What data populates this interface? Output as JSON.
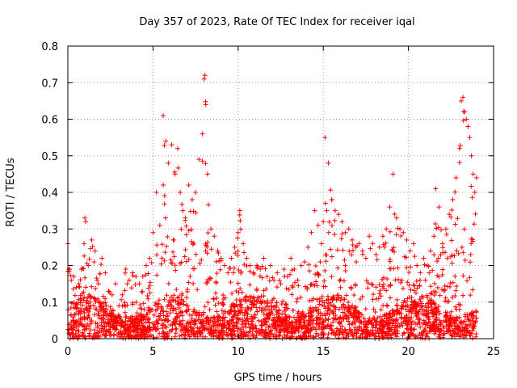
{
  "chart_data": {
    "type": "scatter",
    "title": "Day 357 of 2023, Rate Of TEC Index for receiver iqal",
    "xlabel": "GPS time / hours",
    "ylabel": "ROTI / TECUs",
    "xlim": [
      0,
      25
    ],
    "ylim": [
      0,
      0.8
    ],
    "xticks": [
      0,
      5,
      10,
      15,
      20,
      25
    ],
    "xtick_labels": [
      "0",
      "5",
      "10",
      "15",
      "20",
      "25"
    ],
    "yticks": [
      0,
      0.1,
      0.2,
      0.3,
      0.4,
      0.5,
      0.6,
      0.7,
      0.8
    ],
    "ytick_labels": [
      "0",
      "0.1",
      "0.2",
      "0.3",
      "0.4",
      "0.5",
      "0.6",
      "0.7",
      "0.8"
    ],
    "grid": true,
    "marker": "+",
    "color": "#ff0000",
    "series": [
      {
        "name": "ROTI",
        "x": [
          0.0,
          0.1,
          0.2,
          0.35,
          0.5,
          0.65,
          0.8,
          0.95,
          1.0,
          1.05,
          1.2,
          1.4,
          1.6,
          1.8,
          2.0,
          2.2,
          2.4,
          2.6,
          2.8,
          3.0,
          3.2,
          3.4,
          3.6,
          3.8,
          4.0,
          4.2,
          4.4,
          4.6,
          4.8,
          5.0,
          5.2,
          5.4,
          5.6,
          5.75,
          5.9,
          6.1,
          6.3,
          6.45,
          6.6,
          6.75,
          6.9,
          7.1,
          7.3,
          7.5,
          7.7,
          7.9,
          8.0,
          8.05,
          8.1,
          8.2,
          8.4,
          8.6,
          8.8,
          9.0,
          9.2,
          9.4,
          9.6,
          9.8,
          10.0,
          10.1,
          10.3,
          10.5,
          10.7,
          10.9,
          11.1,
          11.3,
          11.5,
          11.7,
          11.9,
          12.1,
          12.3,
          12.5,
          12.7,
          12.9,
          13.1,
          13.3,
          13.5,
          13.7,
          13.9,
          14.1,
          14.3,
          14.5,
          14.7,
          14.9,
          15.0,
          15.1,
          15.3,
          15.5,
          15.7,
          15.9,
          16.1,
          16.3,
          16.5,
          16.7,
          16.9,
          17.1,
          17.3,
          17.5,
          17.7,
          17.9,
          18.1,
          18.3,
          18.5,
          18.7,
          18.9,
          19.1,
          19.3,
          19.5,
          19.7,
          19.9,
          20.1,
          20.3,
          20.5,
          20.7,
          20.9,
          21.1,
          21.3,
          21.5,
          21.6,
          21.8,
          22.0,
          22.2,
          22.4,
          22.6,
          22.8,
          23.0,
          23.1,
          23.2,
          23.3,
          23.4,
          23.5,
          23.6,
          23.7,
          23.8,
          23.9,
          24.0
        ],
        "y": [
          0.26,
          0.19,
          0.16,
          0.17,
          0.14,
          0.15,
          0.19,
          0.26,
          0.33,
          0.32,
          0.2,
          0.27,
          0.24,
          0.15,
          0.22,
          0.18,
          0.13,
          0.12,
          0.15,
          0.09,
          0.12,
          0.19,
          0.16,
          0.18,
          0.17,
          0.15,
          0.17,
          0.2,
          0.22,
          0.29,
          0.4,
          0.31,
          0.61,
          0.54,
          0.48,
          0.53,
          0.45,
          0.52,
          0.4,
          0.35,
          0.33,
          0.42,
          0.38,
          0.4,
          0.49,
          0.56,
          0.71,
          0.72,
          0.64,
          0.45,
          0.3,
          0.28,
          0.24,
          0.22,
          0.2,
          0.18,
          0.22,
          0.25,
          0.29,
          0.35,
          0.26,
          0.22,
          0.2,
          0.18,
          0.2,
          0.19,
          0.22,
          0.17,
          0.2,
          0.16,
          0.18,
          0.15,
          0.19,
          0.17,
          0.22,
          0.19,
          0.16,
          0.2,
          0.21,
          0.25,
          0.29,
          0.35,
          0.31,
          0.26,
          0.32,
          0.55,
          0.48,
          0.38,
          0.35,
          0.34,
          0.32,
          0.29,
          0.3,
          0.27,
          0.25,
          0.26,
          0.24,
          0.22,
          0.28,
          0.26,
          0.23,
          0.25,
          0.28,
          0.3,
          0.36,
          0.45,
          0.33,
          0.3,
          0.29,
          0.27,
          0.24,
          0.26,
          0.2,
          0.18,
          0.22,
          0.2,
          0.24,
          0.28,
          0.41,
          0.36,
          0.26,
          0.3,
          0.34,
          0.38,
          0.44,
          0.52,
          0.65,
          0.66,
          0.62,
          0.6,
          0.58,
          0.55,
          0.5,
          0.45,
          0.4,
          0.44
        ]
      }
    ]
  }
}
